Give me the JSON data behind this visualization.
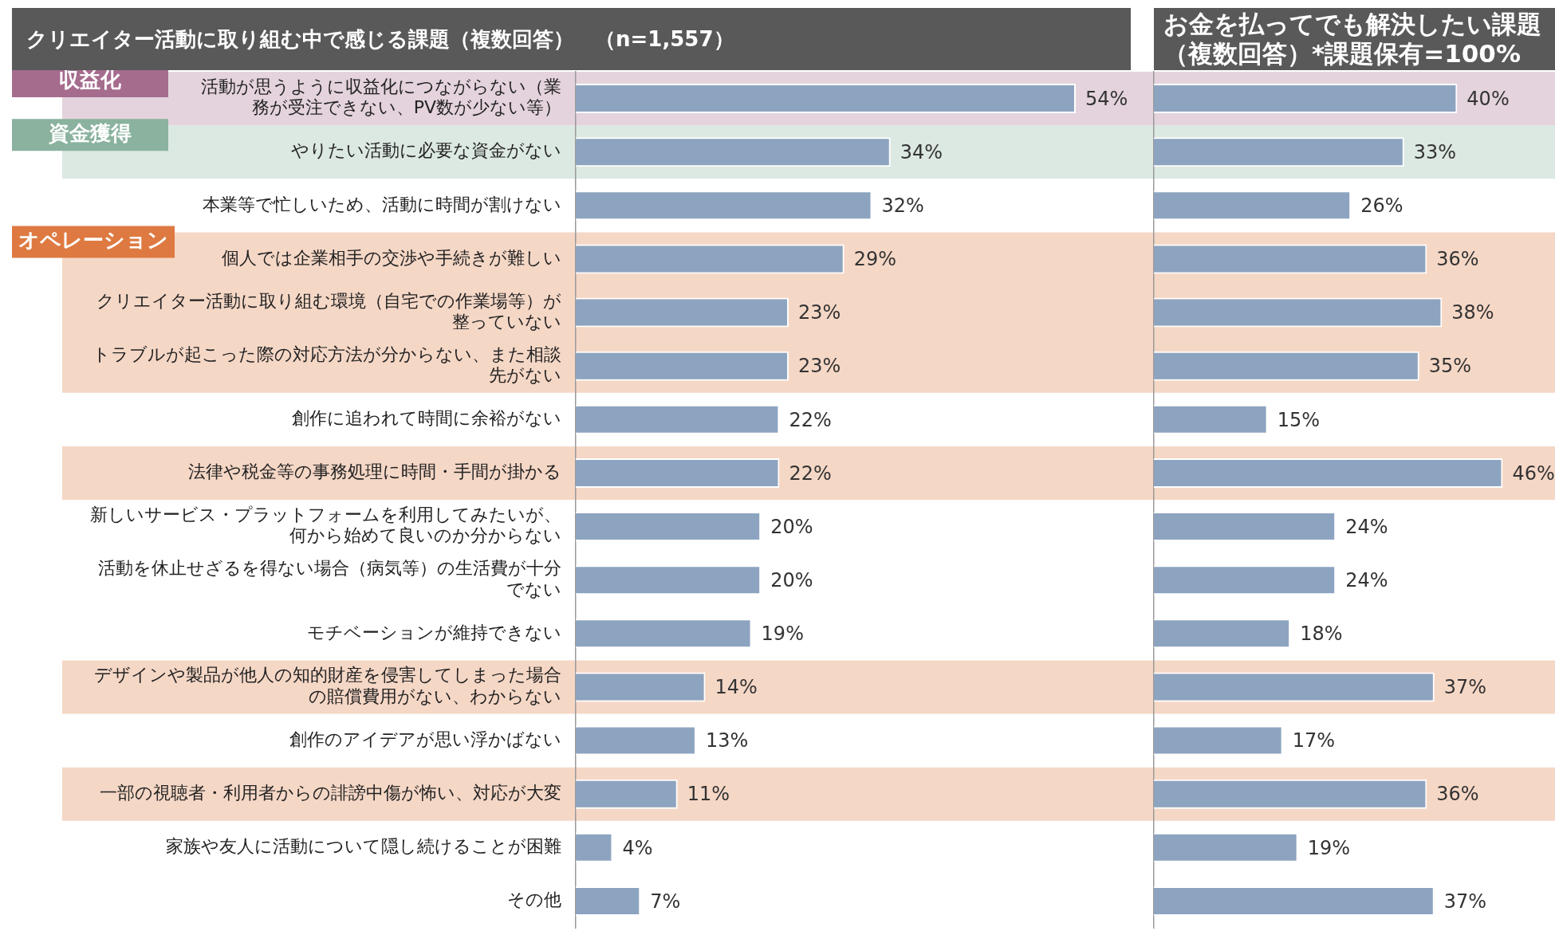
{
  "chart_data": [
    {
      "type": "bar",
      "orientation": "horizontal",
      "title": "クリエイター活動に取り組む中で感じる課題（複数回答）　（n=1,557）",
      "categories": [
        "活動が思うように収益化につながらない（業務が受注できない、PV数が少ない等）",
        "やりたい活動に必要な資金がない",
        "本業等で忙しいため、活動に時間が割けない",
        "個人では企業相手の交渉や手続きが難しい",
        "クリエイター活動に取り組む環境（自宅での作業場等）が整っていない",
        "トラブルが起こった際の対応方法が分からない、また相談先がない",
        "創作に追われて時間に余裕がない",
        "法律や税金等の事務処理に時間・手間が掛かる",
        "新しいサービス・プラットフォームを利用してみたいが、何から始めて良いのか分からない",
        "活動を休止せざるを得ない場合（病気等）の生活費が十分でない",
        "モチベーションが維持できない",
        "デザインや製品が他人の知的財産を侵害してしまった場合の賠償費用がない、わからない",
        "創作のアイデアが思い浮かばない",
        "一部の視聴者・利用者からの誹謗中傷が怖い、対応が大変",
        "家族や友人に活動について隠し続けることが困難",
        "その他"
      ],
      "values": [
        54,
        34,
        32,
        29,
        23,
        23,
        22,
        22,
        20,
        20,
        19,
        14,
        13,
        11,
        4,
        7
      ],
      "value_labels": [
        "54%",
        "34%",
        "32%",
        "29%",
        "23%",
        "23%",
        "22%",
        "22%",
        "20%",
        "20%",
        "19%",
        "14%",
        "13%",
        "11%",
        "4%",
        "7%"
      ],
      "color": "#8da4c0",
      "tick_labels": "y",
      "bands": [
        {
          "axis": "y",
          "from": "活動が思うように収益化につながらない（業務が受注できない、PV数が少ない等）",
          "to": "活動が思うように収益化につながらない（業務が受注できない、PV数が少ない等）",
          "label": "収益化",
          "color": "#e4d3dd"
        },
        {
          "axis": "y",
          "from": "やりたい活動に必要な資金がない",
          "to": "やりたい活動に必要な資金がない",
          "label": "資金獲得",
          "color": "#dce8e2"
        },
        {
          "axis": "y",
          "from": "個人では企業相手の交渉や手続きが難しい",
          "to": "トラブルが起こった際の対応方法が分からない、また相談先がない",
          "label": "オペレーション",
          "color": "#f5d7c6"
        },
        {
          "axis": "y",
          "from": "法律や税金等の事務処理に時間・手間が掛かる",
          "to": "法律や税金等の事務処理に時間・手間が掛かる",
          "color": "#f5d7c6"
        },
        {
          "axis": "y",
          "from": "デザインや製品が他人の知的財産を侵害してしまった場合の賠償費用がない、わからない",
          "to": "デザインや製品が他人の知的財産を侵害してしまった場合の賠償費用がない、わからない",
          "color": "#f5d7c6"
        },
        {
          "axis": "y",
          "from": "一部の視聴者・利用者からの誹謗中傷が怖い、対応が大変",
          "to": "一部の視聴者・利用者からの誹謗中傷が怖い、対応が大変",
          "color": "#f5d7c6"
        }
      ]
    },
    {
      "type": "bar",
      "orientation": "horizontal",
      "title": "お金を払ってでも解決したい課題（複数回答）*課題保有=100%",
      "categories": [
        null,
        null,
        null,
        null,
        null,
        null,
        null,
        null,
        null,
        null,
        null,
        null,
        null,
        null,
        null,
        null
      ],
      "values": [
        40,
        33,
        26,
        36,
        38,
        35,
        15,
        46,
        24,
        24,
        18,
        37,
        17,
        36,
        19,
        37
      ],
      "value_labels": [
        "40%",
        "33%",
        "26%",
        "36%",
        "38%",
        "35%",
        "15%",
        "46%",
        "24%",
        "24%",
        "18%",
        "37%",
        "17%",
        "36%",
        "19%",
        "37%"
      ],
      "color": "#8da4c0",
      "tick_labels": false
    }
  ]
}
